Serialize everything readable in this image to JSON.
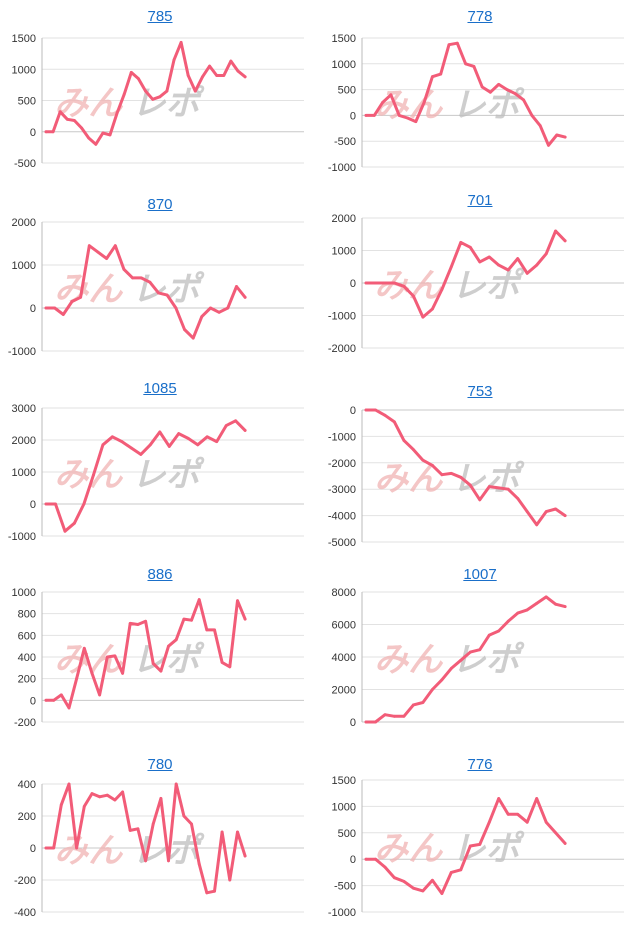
{
  "colors": {
    "line": "#f25c78",
    "grid": "#e2e2e2",
    "axis": "#bbbbbb",
    "title": "#1a6fc9",
    "watermark_a": "#f0b3b3",
    "watermark_b": "#bdbdbd"
  },
  "watermark": {
    "part_a": "みん",
    "part_b": "レポ"
  },
  "chart_data": [
    {
      "type": "line",
      "title": "785",
      "ylim": [
        -500,
        1500
      ],
      "yticks": [
        1500,
        1000,
        500,
        0,
        -500
      ],
      "values": [
        0,
        0,
        320,
        200,
        180,
        60,
        -100,
        -200,
        -20,
        -50,
        300,
        600,
        950,
        850,
        650,
        520,
        560,
        650,
        1150,
        1430,
        900,
        650,
        880,
        1050,
        900,
        900,
        1130,
        970,
        880
      ]
    },
    {
      "type": "line",
      "title": "778",
      "ylim": [
        -1000,
        1500
      ],
      "yticks": [
        1500,
        1000,
        500,
        0,
        -500,
        -1000
      ],
      "values": [
        0,
        0,
        250,
        400,
        0,
        -50,
        -120,
        250,
        750,
        800,
        1370,
        1400,
        1000,
        950,
        550,
        450,
        600,
        500,
        420,
        300,
        0,
        -200,
        -580,
        -380,
        -420
      ]
    },
    {
      "type": "line",
      "title": "870",
      "ylim": [
        -1000,
        2000
      ],
      "yticks": [
        2000,
        1000,
        0,
        -1000
      ],
      "values": [
        0,
        0,
        -150,
        150,
        250,
        1450,
        1300,
        1150,
        1450,
        900,
        700,
        700,
        600,
        350,
        300,
        0,
        -500,
        -700,
        -200,
        0,
        -100,
        0,
        500,
        250
      ]
    },
    {
      "type": "line",
      "title": "701",
      "ylim": [
        -2000,
        2000
      ],
      "yticks": [
        2000,
        1000,
        0,
        -1000,
        -2000
      ],
      "values": [
        0,
        0,
        0,
        0,
        -100,
        -400,
        -1050,
        -800,
        -200,
        500,
        1250,
        1100,
        650,
        800,
        550,
        400,
        750,
        300,
        550,
        900,
        1600,
        1300
      ]
    },
    {
      "type": "line",
      "title": "1085",
      "ylim": [
        -1000,
        3000
      ],
      "yticks": [
        3000,
        2000,
        1000,
        0,
        -1000
      ],
      "values": [
        0,
        0,
        -850,
        -600,
        0,
        900,
        1850,
        2100,
        1950,
        1750,
        1550,
        1850,
        2250,
        1800,
        2200,
        2050,
        1850,
        2100,
        1950,
        2450,
        2600,
        2300
      ]
    },
    {
      "type": "line",
      "title": "753",
      "ylim": [
        -5000,
        0
      ],
      "yticks": [
        0,
        -1000,
        -2000,
        -3000,
        -4000,
        -5000
      ],
      "values": [
        0,
        0,
        -200,
        -450,
        -1150,
        -1500,
        -1900,
        -2100,
        -2450,
        -2400,
        -2550,
        -2850,
        -3400,
        -2900,
        -2950,
        -3000,
        -3350,
        -3850,
        -4350,
        -3850,
        -3750,
        -4000
      ]
    },
    {
      "type": "line",
      "title": "886",
      "ylim": [
        -200,
        1000
      ],
      "yticks": [
        1000,
        800,
        600,
        400,
        200,
        0,
        -200
      ],
      "values": [
        0,
        0,
        50,
        -70,
        200,
        480,
        250,
        50,
        400,
        410,
        250,
        710,
        700,
        730,
        340,
        270,
        500,
        560,
        750,
        740,
        930,
        650,
        650,
        350,
        310,
        920,
        750
      ]
    },
    {
      "type": "line",
      "title": "1007",
      "ylim": [
        0,
        8000
      ],
      "yticks": [
        8000,
        6000,
        4000,
        2000,
        0
      ],
      "values": [
        0,
        0,
        450,
        350,
        350,
        1050,
        1200,
        2000,
        2600,
        3300,
        3800,
        4300,
        4450,
        5350,
        5600,
        6200,
        6700,
        6900,
        7300,
        7700,
        7250,
        7100
      ]
    },
    {
      "type": "line",
      "title": "780",
      "ylim": [
        -400,
        400
      ],
      "yticks": [
        400,
        200,
        0,
        -200,
        -400
      ],
      "values": [
        0,
        0,
        270,
        400,
        0,
        260,
        340,
        320,
        330,
        300,
        350,
        110,
        120,
        -80,
        150,
        310,
        -80,
        400,
        200,
        150,
        -100,
        -280,
        -270,
        100,
        -200,
        100,
        -50
      ]
    },
    {
      "type": "line",
      "title": "776",
      "ylim": [
        -1000,
        1500
      ],
      "yticks": [
        1500,
        1000,
        500,
        0,
        -500,
        -1000
      ],
      "values": [
        0,
        0,
        -150,
        -350,
        -420,
        -550,
        -600,
        -400,
        -650,
        -250,
        -200,
        250,
        280,
        700,
        1150,
        850,
        850,
        700,
        1150,
        700,
        500,
        300
      ]
    }
  ]
}
